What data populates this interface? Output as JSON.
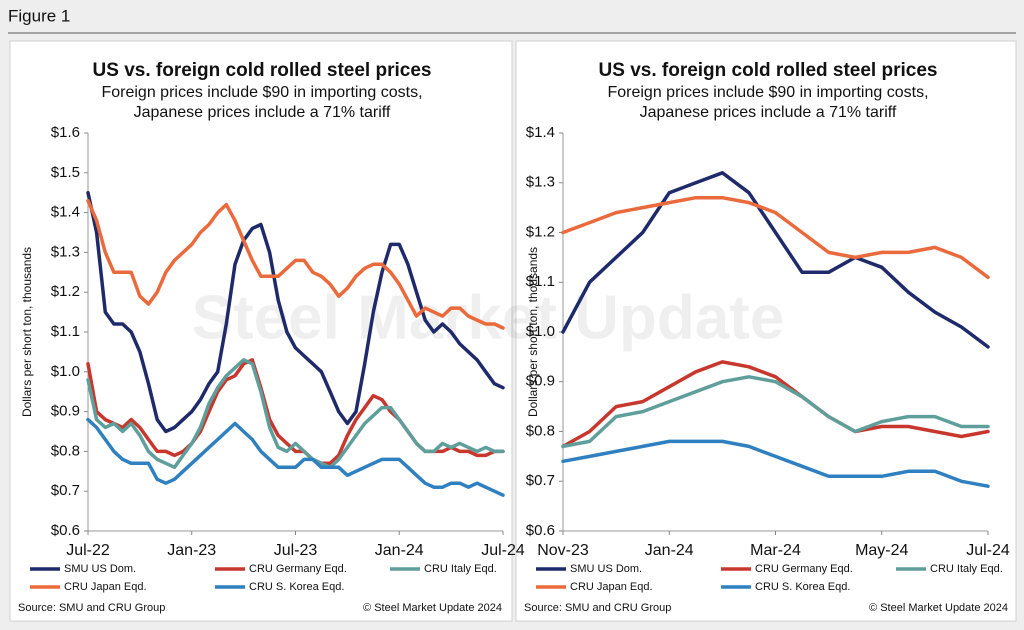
{
  "figure_label": "Figure 1",
  "watermark": "Steel Market Update",
  "chart_data": [
    {
      "type": "line",
      "title": "US vs. foreign cold rolled steel prices",
      "subtitle": [
        "Foreign prices include $90 in importing costs,",
        "Japanese prices include a 71% tariff"
      ],
      "y_label": "Dollars per short ton, thousands",
      "source": "Source: SMU and CRU Group",
      "copyright": "© Steel Market Update 2024",
      "categories": [
        "Jul-22",
        null,
        null,
        null,
        null,
        null,
        null,
        null,
        null,
        null,
        null,
        null,
        "Jan-23",
        null,
        null,
        null,
        null,
        null,
        null,
        null,
        null,
        null,
        null,
        null,
        "Jul-23",
        null,
        null,
        null,
        null,
        null,
        null,
        null,
        null,
        null,
        null,
        null,
        "Jan-24",
        null,
        null,
        null,
        null,
        null,
        null,
        null,
        null,
        null,
        null,
        null,
        "Jul-24"
      ],
      "ylim": [
        0.6,
        1.6
      ],
      "yticks": [
        {
          "value": 0.6,
          "label": "$0.6"
        },
        {
          "value": 0.7,
          "label": "$0.7"
        },
        {
          "value": 0.8,
          "label": "$0.8"
        },
        {
          "value": 0.9,
          "label": "$0.9"
        },
        {
          "value": 1.0,
          "label": "$1.0"
        },
        {
          "value": 1.1,
          "label": "$1.1"
        },
        {
          "value": 1.2,
          "label": "$1.2"
        },
        {
          "value": 1.3,
          "label": "$1.3"
        },
        {
          "value": 1.4,
          "label": "$1.4"
        },
        {
          "value": 1.5,
          "label": "$1.5"
        },
        {
          "value": 1.6,
          "label": "$1.6"
        }
      ],
      "grid": false,
      "series": [
        {
          "name": "SMU US Dom.",
          "color": "#1f2a6b",
          "values": [
            1.45,
            1.35,
            1.15,
            1.12,
            1.12,
            1.1,
            1.05,
            0.97,
            0.88,
            0.85,
            0.86,
            0.88,
            0.9,
            0.93,
            0.97,
            1.0,
            1.12,
            1.27,
            1.33,
            1.36,
            1.37,
            1.3,
            1.18,
            1.1,
            1.06,
            1.04,
            1.02,
            1.0,
            0.95,
            0.9,
            0.87,
            0.9,
            1.02,
            1.15,
            1.25,
            1.32,
            1.32,
            1.27,
            1.2,
            1.13,
            1.1,
            1.12,
            1.1,
            1.07,
            1.05,
            1.03,
            1.0,
            0.97,
            0.96
          ]
        },
        {
          "name": "CRU Germany Eqd.",
          "color": "#c8372d",
          "values": [
            1.02,
            0.9,
            0.88,
            0.87,
            0.86,
            0.88,
            0.86,
            0.83,
            0.8,
            0.8,
            0.79,
            0.8,
            0.82,
            0.85,
            0.9,
            0.95,
            0.98,
            0.99,
            1.02,
            1.03,
            0.96,
            0.88,
            0.84,
            0.82,
            0.8,
            0.8,
            0.78,
            0.77,
            0.77,
            0.79,
            0.84,
            0.88,
            0.91,
            0.94,
            0.93,
            0.9,
            0.88,
            0.85,
            0.82,
            0.8,
            0.8,
            0.8,
            0.81,
            0.8,
            0.8,
            0.79,
            0.79,
            0.8,
            0.8
          ]
        },
        {
          "name": "CRU Italy Eqd.",
          "color": "#5f9f9b",
          "values": [
            0.98,
            0.88,
            0.86,
            0.87,
            0.85,
            0.87,
            0.84,
            0.8,
            0.78,
            0.77,
            0.76,
            0.79,
            0.82,
            0.86,
            0.92,
            0.96,
            0.99,
            1.01,
            1.03,
            1.02,
            0.95,
            0.86,
            0.81,
            0.8,
            0.82,
            0.8,
            0.78,
            0.77,
            0.76,
            0.78,
            0.81,
            0.84,
            0.87,
            0.89,
            0.91,
            0.91,
            0.88,
            0.85,
            0.82,
            0.8,
            0.8,
            0.82,
            0.81,
            0.82,
            0.81,
            0.8,
            0.81,
            0.8,
            0.8
          ]
        },
        {
          "name": "CRU Japan Eqd.",
          "color": "#ea6a3c",
          "values": [
            1.43,
            1.38,
            1.3,
            1.25,
            1.25,
            1.25,
            1.19,
            1.17,
            1.2,
            1.25,
            1.28,
            1.3,
            1.32,
            1.35,
            1.37,
            1.4,
            1.42,
            1.38,
            1.33,
            1.28,
            1.24,
            1.24,
            1.24,
            1.26,
            1.28,
            1.28,
            1.25,
            1.24,
            1.22,
            1.19,
            1.21,
            1.24,
            1.26,
            1.27,
            1.27,
            1.25,
            1.22,
            1.18,
            1.14,
            1.16,
            1.15,
            1.14,
            1.16,
            1.16,
            1.14,
            1.13,
            1.12,
            1.12,
            1.11
          ]
        },
        {
          "name": "CRU S. Korea Eqd.",
          "color": "#2f80c0",
          "values": [
            0.88,
            0.86,
            0.83,
            0.8,
            0.78,
            0.77,
            0.77,
            0.77,
            0.73,
            0.72,
            0.73,
            0.75,
            0.77,
            0.79,
            0.81,
            0.83,
            0.85,
            0.87,
            0.85,
            0.83,
            0.8,
            0.78,
            0.76,
            0.76,
            0.76,
            0.78,
            0.78,
            0.76,
            0.76,
            0.76,
            0.74,
            0.75,
            0.76,
            0.77,
            0.78,
            0.78,
            0.78,
            0.76,
            0.74,
            0.72,
            0.71,
            0.71,
            0.72,
            0.72,
            0.71,
            0.72,
            0.71,
            0.7,
            0.69
          ]
        }
      ]
    },
    {
      "type": "line",
      "title": "US vs. foreign cold rolled steel prices",
      "subtitle": [
        "Foreign prices include $90 in importing costs,",
        "Japanese prices include a 71% tariff"
      ],
      "y_label": "Dollars per short ton, thousands",
      "source": "Source: SMU and CRU Group",
      "copyright": "© Steel Market Update 2024",
      "categories": [
        "Nov-23",
        null,
        null,
        null,
        "Jan-24",
        null,
        null,
        null,
        "Mar-24",
        null,
        null,
        null,
        "May-24",
        null,
        null,
        null,
        "Jul-24"
      ],
      "ylim": [
        0.6,
        1.4
      ],
      "yticks": [
        {
          "value": 0.6,
          "label": "$0.6"
        },
        {
          "value": 0.7,
          "label": "$0.7"
        },
        {
          "value": 0.8,
          "label": "$0.8"
        },
        {
          "value": 0.9,
          "label": "$0.9"
        },
        {
          "value": 1.0,
          "label": "$1.0"
        },
        {
          "value": 1.1,
          "label": "$1.1"
        },
        {
          "value": 1.2,
          "label": "$1.2"
        },
        {
          "value": 1.3,
          "label": "$1.3"
        },
        {
          "value": 1.4,
          "label": "$1.4"
        }
      ],
      "grid": false,
      "series": [
        {
          "name": "SMU US Dom.",
          "color": "#1f2a6b",
          "values": [
            1.0,
            1.1,
            1.15,
            1.2,
            1.28,
            1.3,
            1.32,
            1.28,
            1.2,
            1.12,
            1.12,
            1.15,
            1.13,
            1.08,
            1.04,
            1.01,
            0.97
          ]
        },
        {
          "name": "CRU Germany Eqd.",
          "color": "#c8372d",
          "values": [
            0.77,
            0.8,
            0.85,
            0.86,
            0.89,
            0.92,
            0.94,
            0.93,
            0.91,
            0.87,
            0.83,
            0.8,
            0.81,
            0.81,
            0.8,
            0.79,
            0.8
          ]
        },
        {
          "name": "CRU Italy Eqd.",
          "color": "#5f9f9b",
          "values": [
            0.77,
            0.78,
            0.83,
            0.84,
            0.86,
            0.88,
            0.9,
            0.91,
            0.9,
            0.87,
            0.83,
            0.8,
            0.82,
            0.83,
            0.83,
            0.81,
            0.81
          ]
        },
        {
          "name": "CRU Japan Eqd.",
          "color": "#ea6a3c",
          "values": [
            1.2,
            1.22,
            1.24,
            1.25,
            1.26,
            1.27,
            1.27,
            1.26,
            1.24,
            1.2,
            1.16,
            1.15,
            1.16,
            1.16,
            1.17,
            1.15,
            1.11
          ]
        },
        {
          "name": "CRU S. Korea Eqd.",
          "color": "#2f80c0",
          "values": [
            0.74,
            0.75,
            0.76,
            0.77,
            0.78,
            0.78,
            0.78,
            0.77,
            0.75,
            0.73,
            0.71,
            0.71,
            0.71,
            0.72,
            0.72,
            0.7,
            0.69
          ]
        }
      ]
    }
  ]
}
